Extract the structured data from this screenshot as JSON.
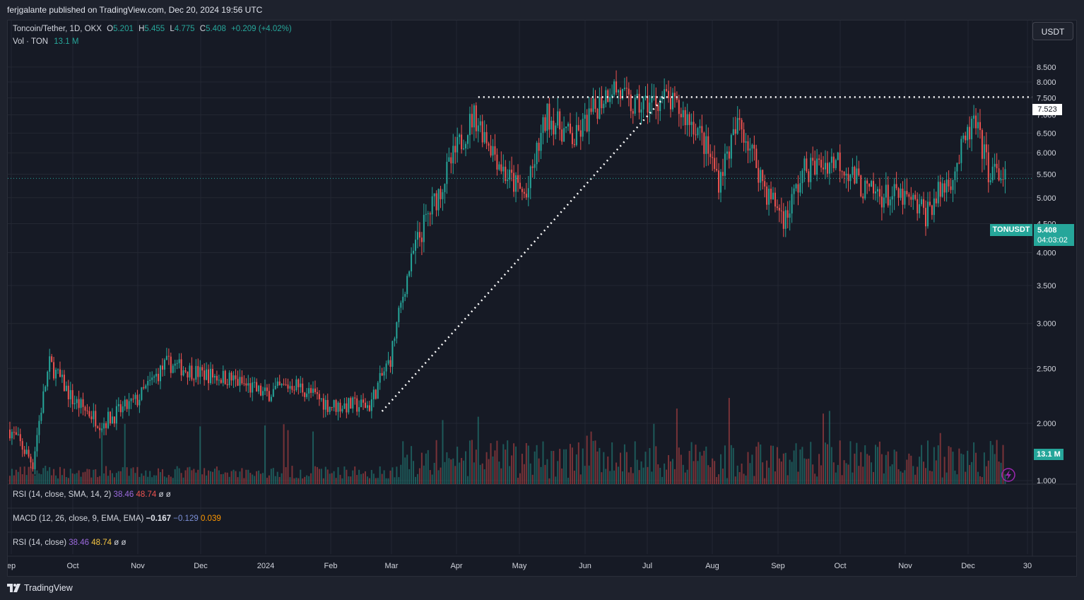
{
  "header": {
    "publisher": "ferjgalante published on TradingView.com, Dec 20, 2024 19:56 UTC"
  },
  "legend": {
    "symbol": "Toncoin/Tether, 1D, OKX",
    "o_label": "O",
    "o_value": "5.201",
    "h_label": "H",
    "h_value": "5.455",
    "l_label": "L",
    "l_value": "4.775",
    "c_label": "C",
    "c_value": "5.408",
    "change": "+0.209 (+4.02%)",
    "vol_label": "Vol · TON",
    "vol_value": "13.1 M"
  },
  "currency_button": "USDT",
  "price_tags": {
    "resistance": "7.523",
    "symbol": "TONUSDT",
    "last_price": "5.408",
    "countdown": "04:03:02",
    "volume": "13.1 M"
  },
  "indicators": [
    {
      "name": "RSI (14, close, SMA, 14, 2)",
      "v1": "38.46",
      "v2": "48.74",
      "v3": "ø",
      "v4": "ø"
    },
    {
      "name": "MACD (12, 26, close, 9, EMA, EMA)",
      "v1": "−0.167",
      "v2": "−0.129",
      "v3": "0.039"
    },
    {
      "name": "RSI (14, close)",
      "v1": "38.46",
      "v2": "48.74",
      "v3": "ø",
      "v4": "ø"
    }
  ],
  "footer": {
    "brand": "TradingView"
  },
  "colors": {
    "up": "#26a69a",
    "down": "#ef5350",
    "background": "#161a25",
    "grid": "#232732"
  },
  "chart_data": {
    "type": "candlestick",
    "symbol": "TONUSDT",
    "interval": "1D",
    "y_ticks": [
      "1.000",
      "2.000",
      "2.500",
      "3.000",
      "3.500",
      "4.000",
      "4.500",
      "5.000",
      "5.500",
      "6.000",
      "6.500",
      "7.000",
      "7.500",
      "8.000",
      "8.500"
    ],
    "y_scale": "log",
    "x_ticks": [
      "ep",
      "Oct",
      "Nov",
      "Dec",
      "2024",
      "Feb",
      "Mar",
      "Apr",
      "May",
      "Jun",
      "Jul",
      "Aug",
      "Sep",
      "Oct",
      "Nov",
      "Dec",
      "30"
    ],
    "resistance_level": 7.523,
    "trendline": [
      {
        "x": "2024-02-26",
        "y": 2.1
      },
      {
        "x": "2024-07-10",
        "y": 7.523
      }
    ],
    "monthly_path": [
      {
        "x": "2023-09-01",
        "y": 1.95
      },
      {
        "x": "2023-09-12",
        "y": 1.7
      },
      {
        "x": "2023-09-20",
        "y": 2.55
      },
      {
        "x": "2023-10-01",
        "y": 2.2
      },
      {
        "x": "2023-10-15",
        "y": 2.0
      },
      {
        "x": "2023-11-01",
        "y": 2.2
      },
      {
        "x": "2023-11-15",
        "y": 2.55
      },
      {
        "x": "2023-12-01",
        "y": 2.45
      },
      {
        "x": "2023-12-15",
        "y": 2.4
      },
      {
        "x": "2024-01-01",
        "y": 2.25
      },
      {
        "x": "2024-01-15",
        "y": 2.35
      },
      {
        "x": "2024-02-01",
        "y": 2.15
      },
      {
        "x": "2024-02-20",
        "y": 2.15
      },
      {
        "x": "2024-03-01",
        "y": 2.6
      },
      {
        "x": "2024-03-12",
        "y": 4.0
      },
      {
        "x": "2024-03-25",
        "y": 5.2
      },
      {
        "x": "2024-04-10",
        "y": 7.0
      },
      {
        "x": "2024-04-25",
        "y": 5.5
      },
      {
        "x": "2024-05-05",
        "y": 5.0
      },
      {
        "x": "2024-05-15",
        "y": 7.0
      },
      {
        "x": "2024-05-28",
        "y": 6.3
      },
      {
        "x": "2024-06-15",
        "y": 7.9
      },
      {
        "x": "2024-06-25",
        "y": 7.2
      },
      {
        "x": "2024-07-10",
        "y": 7.5
      },
      {
        "x": "2024-07-25",
        "y": 6.7
      },
      {
        "x": "2024-08-05",
        "y": 5.4
      },
      {
        "x": "2024-08-15",
        "y": 6.8
      },
      {
        "x": "2024-08-28",
        "y": 5.1
      },
      {
        "x": "2024-09-06",
        "y": 4.6
      },
      {
        "x": "2024-09-15",
        "y": 5.6
      },
      {
        "x": "2024-10-01",
        "y": 5.85
      },
      {
        "x": "2024-10-15",
        "y": 5.1
      },
      {
        "x": "2024-11-01",
        "y": 5.0
      },
      {
        "x": "2024-11-12",
        "y": 4.7
      },
      {
        "x": "2024-11-25",
        "y": 5.5
      },
      {
        "x": "2024-12-05",
        "y": 6.8
      },
      {
        "x": "2024-12-12",
        "y": 5.6
      },
      {
        "x": "2024-12-20",
        "y": 5.408
      }
    ]
  }
}
